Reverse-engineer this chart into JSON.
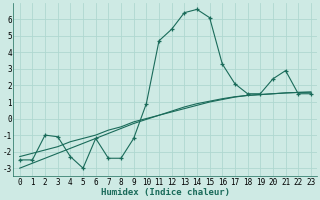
{
  "x": [
    0,
    1,
    2,
    3,
    4,
    5,
    6,
    7,
    8,
    9,
    10,
    11,
    12,
    13,
    14,
    15,
    16,
    17,
    18,
    19,
    20,
    21,
    22,
    23
  ],
  "y_main": [
    -2.5,
    -2.5,
    -1.0,
    -1.1,
    -2.3,
    -3.0,
    -1.2,
    -2.4,
    -2.4,
    -1.2,
    0.9,
    4.7,
    5.4,
    6.4,
    6.6,
    6.1,
    3.3,
    2.1,
    1.5,
    1.5,
    2.4,
    2.9,
    1.5,
    1.5
  ],
  "y_line1": [
    -2.3,
    -2.1,
    -1.9,
    -1.7,
    -1.4,
    -1.2,
    -1.0,
    -0.7,
    -0.5,
    -0.2,
    0.0,
    0.2,
    0.4,
    0.6,
    0.8,
    1.0,
    1.15,
    1.3,
    1.4,
    1.45,
    1.5,
    1.55,
    1.58,
    1.6
  ],
  "y_line2": [
    -3.0,
    -2.7,
    -2.4,
    -2.1,
    -1.8,
    -1.5,
    -1.2,
    -0.9,
    -0.6,
    -0.3,
    -0.05,
    0.2,
    0.45,
    0.7,
    0.9,
    1.05,
    1.2,
    1.32,
    1.4,
    1.45,
    1.5,
    1.55,
    1.58,
    1.6
  ],
  "line_color": "#1a6b5a",
  "bg_color": "#ceeae4",
  "grid_color": "#afd8d0",
  "xlabel": "Humidex (Indice chaleur)",
  "xlim": [
    -0.5,
    23.5
  ],
  "ylim": [
    -3.5,
    7.0
  ],
  "yticks": [
    -3,
    -2,
    -1,
    0,
    1,
    2,
    3,
    4,
    5,
    6
  ],
  "xticks": [
    0,
    1,
    2,
    3,
    4,
    5,
    6,
    7,
    8,
    9,
    10,
    11,
    12,
    13,
    14,
    15,
    16,
    17,
    18,
    19,
    20,
    21,
    22,
    23
  ],
  "xlabel_fontsize": 6.5,
  "tick_fontsize": 5.5
}
